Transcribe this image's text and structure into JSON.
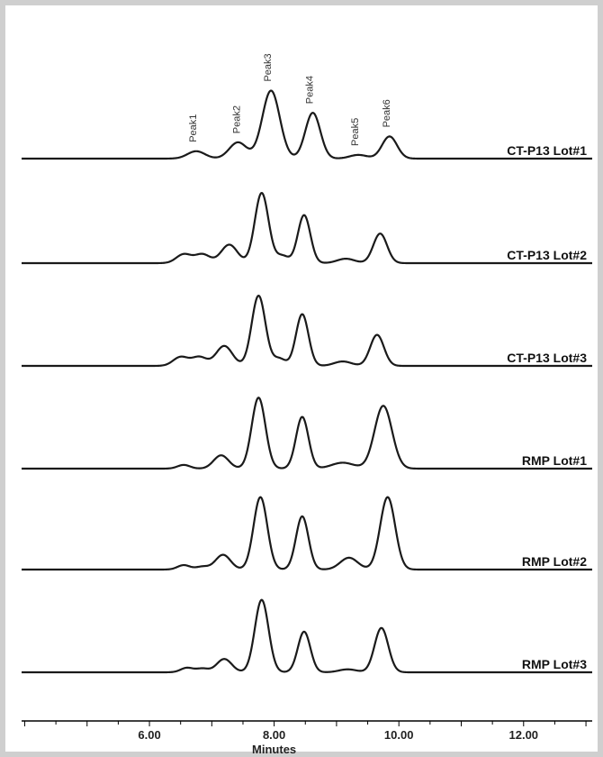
{
  "chart_data": {
    "type": "line",
    "title": "",
    "xlabel": "Minutes",
    "ylabel": "",
    "xlim": [
      3.95,
      13.1
    ],
    "xticks": [
      6.0,
      8.0,
      10.0,
      12.0
    ],
    "xtick_labels": [
      "6.00",
      "8.00",
      "10.00",
      "12.00"
    ],
    "grid": false,
    "layout": "stacked-offset",
    "peak_labels": [
      {
        "text": "Peak1",
        "x": 6.75
      },
      {
        "text": "Peak2",
        "x": 7.45
      },
      {
        "text": "Peak3",
        "x": 7.95
      },
      {
        "text": "Peak4",
        "x": 8.62
      },
      {
        "text": "Peak5",
        "x": 9.35
      },
      {
        "text": "Peak6",
        "x": 9.85
      }
    ],
    "series": [
      {
        "name": "CT-P13 Lot#1",
        "peaks": [
          {
            "x": 6.75,
            "height": 0.1,
            "width": 0.14
          },
          {
            "x": 7.42,
            "height": 0.22,
            "width": 0.14
          },
          {
            "x": 7.95,
            "height": 0.92,
            "width": 0.14
          },
          {
            "x": 8.62,
            "height": 0.62,
            "width": 0.12
          },
          {
            "x": 9.35,
            "height": 0.05,
            "width": 0.14
          },
          {
            "x": 9.85,
            "height": 0.3,
            "width": 0.12
          }
        ]
      },
      {
        "name": "CT-P13 Lot#2",
        "peaks": [
          {
            "x": 6.55,
            "height": 0.12,
            "width": 0.12
          },
          {
            "x": 6.85,
            "height": 0.12,
            "width": 0.12
          },
          {
            "x": 7.28,
            "height": 0.25,
            "width": 0.13
          },
          {
            "x": 7.8,
            "height": 0.95,
            "width": 0.11
          },
          {
            "x": 8.13,
            "height": 0.1,
            "width": 0.1
          },
          {
            "x": 8.48,
            "height": 0.65,
            "width": 0.1
          },
          {
            "x": 9.15,
            "height": 0.06,
            "width": 0.14
          },
          {
            "x": 9.7,
            "height": 0.4,
            "width": 0.11
          }
        ]
      },
      {
        "name": "CT-P13 Lot#3",
        "peaks": [
          {
            "x": 6.5,
            "height": 0.12,
            "width": 0.12
          },
          {
            "x": 6.8,
            "height": 0.12,
            "width": 0.12
          },
          {
            "x": 7.2,
            "height": 0.27,
            "width": 0.13
          },
          {
            "x": 7.75,
            "height": 0.95,
            "width": 0.11
          },
          {
            "x": 8.08,
            "height": 0.1,
            "width": 0.1
          },
          {
            "x": 8.45,
            "height": 0.7,
            "width": 0.1
          },
          {
            "x": 9.1,
            "height": 0.06,
            "width": 0.14
          },
          {
            "x": 9.65,
            "height": 0.42,
            "width": 0.11
          }
        ]
      },
      {
        "name": "RMP Lot#1",
        "peaks": [
          {
            "x": 6.55,
            "height": 0.05,
            "width": 0.1
          },
          {
            "x": 7.15,
            "height": 0.18,
            "width": 0.12
          },
          {
            "x": 7.75,
            "height": 0.96,
            "width": 0.11
          },
          {
            "x": 8.45,
            "height": 0.7,
            "width": 0.1
          },
          {
            "x": 9.1,
            "height": 0.08,
            "width": 0.18
          },
          {
            "x": 9.75,
            "height": 0.85,
            "width": 0.14
          }
        ]
      },
      {
        "name": "RMP Lot#2",
        "peaks": [
          {
            "x": 6.55,
            "height": 0.06,
            "width": 0.1
          },
          {
            "x": 6.85,
            "height": 0.04,
            "width": 0.1
          },
          {
            "x": 7.18,
            "height": 0.2,
            "width": 0.12
          },
          {
            "x": 7.78,
            "height": 0.98,
            "width": 0.11
          },
          {
            "x": 8.45,
            "height": 0.72,
            "width": 0.1
          },
          {
            "x": 9.2,
            "height": 0.16,
            "width": 0.14
          },
          {
            "x": 9.82,
            "height": 0.98,
            "width": 0.12
          }
        ]
      },
      {
        "name": "RMP Lot#3",
        "peaks": [
          {
            "x": 6.6,
            "height": 0.06,
            "width": 0.1
          },
          {
            "x": 6.85,
            "height": 0.05,
            "width": 0.1
          },
          {
            "x": 7.2,
            "height": 0.18,
            "width": 0.12
          },
          {
            "x": 7.8,
            "height": 0.98,
            "width": 0.11
          },
          {
            "x": 8.48,
            "height": 0.55,
            "width": 0.1
          },
          {
            "x": 9.18,
            "height": 0.04,
            "width": 0.14
          },
          {
            "x": 9.72,
            "height": 0.6,
            "width": 0.11
          }
        ]
      }
    ]
  }
}
